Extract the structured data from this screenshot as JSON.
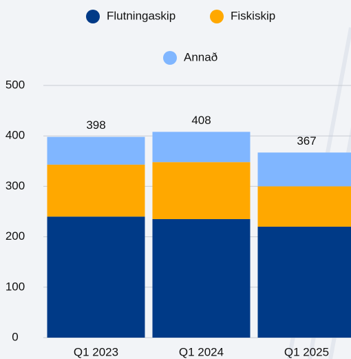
{
  "chart_data": {
    "type": "stacked_bar",
    "categories": [
      "Q1 2023",
      "Q1 2024",
      "Q1 2025"
    ],
    "series": [
      {
        "name": "Flutningaskip",
        "color": "#003a87",
        "values": [
          240,
          235,
          220
        ]
      },
      {
        "name": "Fiskiskip",
        "color": "#ffa800",
        "values": [
          103,
          113,
          80
        ]
      },
      {
        "name": "Annað",
        "color": "#80b6ff",
        "values": [
          55,
          60,
          67
        ]
      }
    ],
    "totals": [
      398,
      408,
      367
    ],
    "ylim": [
      0,
      500
    ],
    "yticks": [
      0,
      100,
      200,
      300,
      400,
      500
    ],
    "grid": true
  }
}
